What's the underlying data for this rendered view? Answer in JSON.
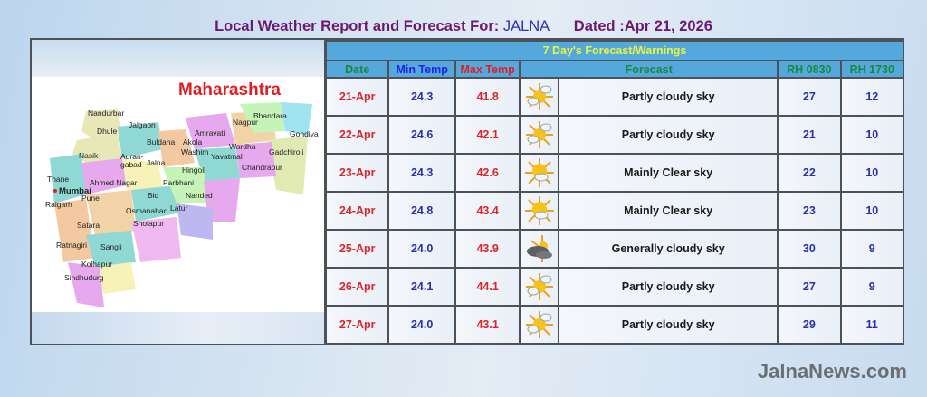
{
  "header": {
    "title_prefix": "Local Weather Report and Forecast For:",
    "city": "JALNA",
    "dated": "Dated :Apr 21, 2026"
  },
  "map": {
    "title": "Maharashtra",
    "cities": [
      "Nandurbar",
      "Dhule",
      "Jalgaon",
      "Buldana",
      "Amravati",
      "Akola",
      "Nagpur",
      "Bhandara",
      "Gondiya",
      "Wardha",
      "Washim",
      "Yavatmal",
      "Gadchiroli",
      "Nasik",
      "Auran-gabad",
      "Jalna",
      "Hingoli",
      "Chandrapur",
      "Thane",
      "Ahmed Nagar",
      "Parbhani",
      "Mumbai",
      "Pune",
      "Bid",
      "Nanded",
      "Raigarh",
      "Osmanabad",
      "Latur",
      "Satara",
      "Sholapur",
      "Ratnagiri",
      "Sangli",
      "Kolhapur",
      "Sindhudurg"
    ]
  },
  "forecast": {
    "banner": "7 Day's Forecast/Warnings",
    "columns": {
      "date": "Date",
      "min": "Min Temp",
      "max": "Max Temp",
      "forecast": "Forecast",
      "rh1": "RH 0830",
      "rh2": "RH 1730"
    },
    "rows": [
      {
        "date": "21-Apr",
        "min": "24.3",
        "max": "41.8",
        "icon": "partly-cloudy-icon",
        "forecast": "Partly cloudy sky",
        "rh1": "27",
        "rh2": "12"
      },
      {
        "date": "22-Apr",
        "min": "24.6",
        "max": "42.1",
        "icon": "partly-cloudy-icon",
        "forecast": "Partly cloudy sky",
        "rh1": "21",
        "rh2": "10"
      },
      {
        "date": "23-Apr",
        "min": "24.3",
        "max": "42.6",
        "icon": "mainly-clear-icon",
        "forecast": "Mainly Clear sky",
        "rh1": "22",
        "rh2": "10"
      },
      {
        "date": "24-Apr",
        "min": "24.8",
        "max": "43.4",
        "icon": "mainly-clear-icon",
        "forecast": "Mainly Clear sky",
        "rh1": "23",
        "rh2": "10"
      },
      {
        "date": "25-Apr",
        "min": "24.0",
        "max": "43.9",
        "icon": "generally-cloudy-icon",
        "forecast": "Generally cloudy sky",
        "rh1": "30",
        "rh2": "9"
      },
      {
        "date": "26-Apr",
        "min": "24.1",
        "max": "44.1",
        "icon": "partly-cloudy-icon",
        "forecast": "Partly cloudy sky",
        "rh1": "27",
        "rh2": "9"
      },
      {
        "date": "27-Apr",
        "min": "24.0",
        "max": "43.1",
        "icon": "partly-cloudy-icon",
        "forecast": "Partly cloudy sky",
        "rh1": "29",
        "rh2": "11"
      }
    ]
  },
  "footer": {
    "site": "JalnaNews.com"
  },
  "colors": {
    "banner_bg": "#55a8dc",
    "banner_text": "#e8f53a",
    "title": "#6b1a6e",
    "date": "#d8262c",
    "min": "#2a2fae",
    "max": "#d8262c",
    "header_green": "#168a3c"
  }
}
